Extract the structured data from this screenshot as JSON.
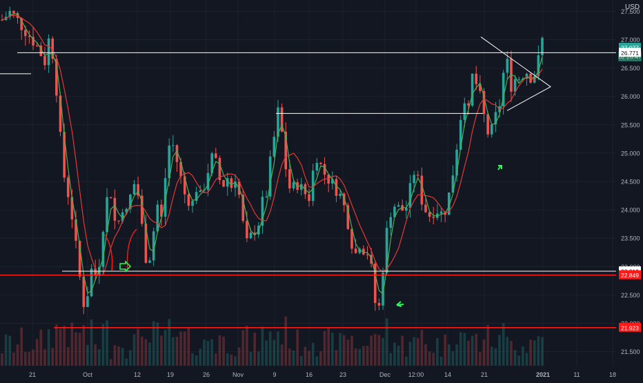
{
  "currency": "USD",
  "colors": {
    "background": "#131722",
    "grid": "#1e222d",
    "up": "#26a69a",
    "down": "#ef5350",
    "ma_green": "#4caf50",
    "ma_red": "#e53935",
    "drawing_white": "#ffffff",
    "drawing_red": "#ff1a1a",
    "annotation": "#22ff55",
    "axis_text": "#b2b5be",
    "price_last": "#26a69a"
  },
  "price_labels": {
    "last": "27.077",
    "countdown": "02:26:47",
    "level_white_upper": "26.771",
    "level_white_lower": "22.919",
    "level_red_upper": "22.849",
    "level_red_lower": "21.923"
  },
  "chart_data": {
    "type": "candlestick",
    "y_axis": {
      "ticks": [
        "27.500",
        "27.000",
        "26.500",
        "26.000",
        "25.500",
        "25.000",
        "24.500",
        "24.000",
        "23.500",
        "23.000",
        "22.500",
        "22.000",
        "21.500"
      ],
      "range": [
        21.3,
        27.7
      ]
    },
    "x_axis": {
      "ticks": [
        "21",
        "Oct",
        "12",
        "19",
        "26",
        "Nov",
        "9",
        "16",
        "23",
        "Dec",
        "12:00",
        "14",
        "21",
        "2021",
        "11",
        "18"
      ]
    },
    "horizontal_levels": [
      {
        "value": 26.771,
        "color": "white"
      },
      {
        "value": 26.4,
        "color": "white"
      },
      {
        "value": 25.7,
        "color": "white"
      },
      {
        "value": 22.919,
        "color": "white"
      },
      {
        "value": 22.849,
        "color": "red"
      },
      {
        "value": 21.923,
        "color": "red"
      }
    ],
    "triangle": [
      [
        27.05,
        26.55
      ],
      [
        26.6,
        25.75
      ]
    ],
    "price_path": [
      [
        0,
        27.35
      ],
      [
        2,
        27.5
      ],
      [
        4,
        27.3
      ],
      [
        6,
        27.1
      ],
      [
        8,
        26.9
      ],
      [
        10,
        26.6
      ],
      [
        11,
        27.1
      ],
      [
        12,
        26.6
      ],
      [
        13,
        25.8
      ],
      [
        14,
        24.7
      ],
      [
        15,
        24.4
      ],
      [
        16,
        24.0
      ],
      [
        17,
        23.4
      ],
      [
        18,
        22.8
      ],
      [
        19,
        22.3
      ],
      [
        20,
        22.6
      ],
      [
        21,
        23.1
      ],
      [
        22,
        22.7
      ],
      [
        23,
        23.5
      ],
      [
        24,
        24.1
      ],
      [
        25,
        24.4
      ],
      [
        26,
        23.8
      ],
      [
        27,
        23.8
      ],
      [
        28,
        24.1
      ],
      [
        29,
        23.9
      ],
      [
        30,
        24.4
      ],
      [
        31,
        24.5
      ],
      [
        32,
        24.0
      ],
      [
        33,
        23.2
      ],
      [
        34,
        23.1
      ],
      [
        35,
        23.6
      ],
      [
        36,
        24.1
      ],
      [
        37,
        23.8
      ],
      [
        38,
        24.8
      ],
      [
        39,
        25.3
      ],
      [
        40,
        25.0
      ],
      [
        41,
        24.7
      ],
      [
        42,
        24.3
      ],
      [
        43,
        24.2
      ],
      [
        44,
        24.1
      ],
      [
        45,
        24.4
      ],
      [
        46,
        24.2
      ],
      [
        47,
        24.5
      ],
      [
        48,
        24.8
      ],
      [
        49,
        25.0
      ],
      [
        50,
        24.6
      ],
      [
        51,
        24.4
      ],
      [
        52,
        24.6
      ],
      [
        53,
        24.4
      ],
      [
        54,
        24.6
      ],
      [
        55,
        24.2
      ],
      [
        56,
        23.6
      ],
      [
        57,
        23.3
      ],
      [
        58,
        23.7
      ],
      [
        59,
        23.6
      ],
      [
        60,
        24.1
      ],
      [
        61,
        24.2
      ],
      [
        62,
        24.8
      ],
      [
        63,
        25.3
      ],
      [
        64,
        25.8
      ],
      [
        65,
        25.2
      ],
      [
        66,
        24.5
      ],
      [
        67,
        24.3
      ],
      [
        68,
        24.5
      ],
      [
        69,
        24.4
      ],
      [
        70,
        24.3
      ],
      [
        71,
        24.2
      ],
      [
        72,
        24.7
      ],
      [
        73,
        25.0
      ],
      [
        74,
        24.7
      ],
      [
        75,
        24.6
      ],
      [
        76,
        24.5
      ],
      [
        77,
        24.4
      ],
      [
        78,
        24.3
      ],
      [
        79,
        24.1
      ],
      [
        80,
        23.8
      ],
      [
        81,
        23.4
      ],
      [
        82,
        23.2
      ],
      [
        83,
        23.5
      ],
      [
        84,
        23.2
      ],
      [
        85,
        23.3
      ],
      [
        86,
        22.5
      ],
      [
        87,
        22.1
      ],
      [
        88,
        22.9
      ],
      [
        89,
        23.6
      ],
      [
        90,
        24.0
      ],
      [
        91,
        24.1
      ],
      [
        92,
        24.0
      ],
      [
        93,
        24.0
      ],
      [
        94,
        24.1
      ],
      [
        95,
        24.7
      ],
      [
        96,
        24.6
      ],
      [
        97,
        24.2
      ],
      [
        98,
        24.0
      ],
      [
        99,
        23.9
      ],
      [
        100,
        24.0
      ],
      [
        101,
        24.0
      ],
      [
        102,
        23.9
      ],
      [
        103,
        24.1
      ],
      [
        104,
        24.5
      ],
      [
        105,
        25.0
      ],
      [
        106,
        25.6
      ],
      [
        107,
        26.0
      ],
      [
        108,
        25.7
      ],
      [
        109,
        26.5
      ],
      [
        110,
        26.1
      ],
      [
        111,
        25.9
      ],
      [
        112,
        25.4
      ],
      [
        113,
        25.3
      ],
      [
        114,
        25.6
      ],
      [
        115,
        25.8
      ],
      [
        116,
        26.4
      ],
      [
        117,
        26.6
      ],
      [
        118,
        26.1
      ],
      [
        119,
        26.4
      ],
      [
        120,
        26.3
      ],
      [
        121,
        26.5
      ],
      [
        122,
        26.35
      ],
      [
        123,
        26.35
      ],
      [
        124,
        26.6
      ],
      [
        125,
        27.0
      ]
    ]
  }
}
